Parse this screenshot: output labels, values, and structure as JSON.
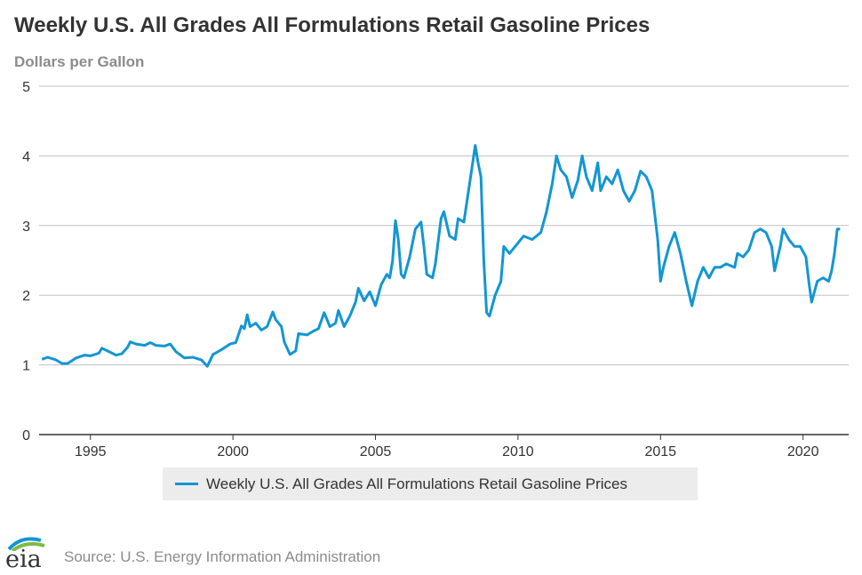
{
  "title": "Weekly U.S. All Grades All Formulations Retail Gasoline Prices",
  "units_label": "Dollars per Gallon",
  "source_text": "Source: U.S. Energy Information Administration",
  "logo_text": "eia",
  "colors": {
    "series": "#1296d3",
    "grid": "#c0c0c0",
    "axis": "#333333",
    "legend_bg": "#ececec"
  },
  "chart_data": {
    "type": "line",
    "title": "Weekly U.S. All Grades All Formulations Retail Gasoline Prices",
    "ylabel": "Dollars per Gallon",
    "xlabel": "",
    "xlim": [
      1993.2,
      2021.6
    ],
    "ylim": [
      0,
      5
    ],
    "x_ticks": [
      1995,
      2000,
      2005,
      2010,
      2015,
      2020
    ],
    "y_ticks": [
      0,
      1,
      2,
      3,
      4,
      5
    ],
    "grid": true,
    "legend": "bottom-center",
    "series": [
      {
        "name": "Weekly U.S. All Grades All Formulations Retail Gasoline Prices",
        "points": [
          [
            1993.3,
            1.08
          ],
          [
            1993.5,
            1.11
          ],
          [
            1993.8,
            1.07
          ],
          [
            1994.0,
            1.02
          ],
          [
            1994.2,
            1.02
          ],
          [
            1994.5,
            1.1
          ],
          [
            1994.8,
            1.14
          ],
          [
            1995.0,
            1.13
          ],
          [
            1995.3,
            1.17
          ],
          [
            1995.4,
            1.24
          ],
          [
            1995.6,
            1.2
          ],
          [
            1995.9,
            1.14
          ],
          [
            1996.1,
            1.16
          ],
          [
            1996.3,
            1.25
          ],
          [
            1996.4,
            1.33
          ],
          [
            1996.6,
            1.3
          ],
          [
            1996.9,
            1.28
          ],
          [
            1997.1,
            1.32
          ],
          [
            1997.3,
            1.28
          ],
          [
            1997.6,
            1.27
          ],
          [
            1997.8,
            1.3
          ],
          [
            1998.0,
            1.19
          ],
          [
            1998.3,
            1.1
          ],
          [
            1998.6,
            1.11
          ],
          [
            1998.9,
            1.07
          ],
          [
            1999.1,
            0.98
          ],
          [
            1999.3,
            1.15
          ],
          [
            1999.6,
            1.22
          ],
          [
            1999.9,
            1.3
          ],
          [
            2000.1,
            1.32
          ],
          [
            2000.3,
            1.56
          ],
          [
            2000.4,
            1.52
          ],
          [
            2000.5,
            1.72
          ],
          [
            2000.6,
            1.55
          ],
          [
            2000.8,
            1.6
          ],
          [
            2001.0,
            1.5
          ],
          [
            2001.2,
            1.55
          ],
          [
            2001.4,
            1.76
          ],
          [
            2001.5,
            1.65
          ],
          [
            2001.7,
            1.55
          ],
          [
            2001.8,
            1.33
          ],
          [
            2002.0,
            1.15
          ],
          [
            2002.2,
            1.2
          ],
          [
            2002.3,
            1.45
          ],
          [
            2002.6,
            1.43
          ],
          [
            2002.8,
            1.48
          ],
          [
            2003.0,
            1.52
          ],
          [
            2003.2,
            1.75
          ],
          [
            2003.4,
            1.55
          ],
          [
            2003.6,
            1.6
          ],
          [
            2003.7,
            1.78
          ],
          [
            2003.9,
            1.55
          ],
          [
            2004.1,
            1.7
          ],
          [
            2004.3,
            1.9
          ],
          [
            2004.4,
            2.1
          ],
          [
            2004.6,
            1.92
          ],
          [
            2004.8,
            2.05
          ],
          [
            2005.0,
            1.85
          ],
          [
            2005.2,
            2.15
          ],
          [
            2005.4,
            2.3
          ],
          [
            2005.5,
            2.25
          ],
          [
            2005.6,
            2.5
          ],
          [
            2005.7,
            3.07
          ],
          [
            2005.8,
            2.8
          ],
          [
            2005.9,
            2.3
          ],
          [
            2006.0,
            2.25
          ],
          [
            2006.2,
            2.55
          ],
          [
            2006.4,
            2.95
          ],
          [
            2006.6,
            3.05
          ],
          [
            2006.7,
            2.7
          ],
          [
            2006.8,
            2.3
          ],
          [
            2007.0,
            2.25
          ],
          [
            2007.1,
            2.45
          ],
          [
            2007.3,
            3.1
          ],
          [
            2007.4,
            3.2
          ],
          [
            2007.6,
            2.85
          ],
          [
            2007.8,
            2.8
          ],
          [
            2007.9,
            3.1
          ],
          [
            2008.1,
            3.05
          ],
          [
            2008.3,
            3.6
          ],
          [
            2008.5,
            4.15
          ],
          [
            2008.6,
            3.9
          ],
          [
            2008.7,
            3.7
          ],
          [
            2008.8,
            2.5
          ],
          [
            2008.9,
            1.75
          ],
          [
            2009.0,
            1.7
          ],
          [
            2009.2,
            2.0
          ],
          [
            2009.4,
            2.2
          ],
          [
            2009.5,
            2.7
          ],
          [
            2009.7,
            2.6
          ],
          [
            2010.0,
            2.75
          ],
          [
            2010.2,
            2.85
          ],
          [
            2010.5,
            2.8
          ],
          [
            2010.8,
            2.9
          ],
          [
            2011.0,
            3.2
          ],
          [
            2011.2,
            3.6
          ],
          [
            2011.35,
            4.0
          ],
          [
            2011.5,
            3.8
          ],
          [
            2011.7,
            3.7
          ],
          [
            2011.9,
            3.4
          ],
          [
            2012.1,
            3.65
          ],
          [
            2012.25,
            4.0
          ],
          [
            2012.4,
            3.7
          ],
          [
            2012.6,
            3.5
          ],
          [
            2012.8,
            3.9
          ],
          [
            2012.9,
            3.5
          ],
          [
            2013.1,
            3.7
          ],
          [
            2013.3,
            3.6
          ],
          [
            2013.5,
            3.8
          ],
          [
            2013.7,
            3.5
          ],
          [
            2013.9,
            3.35
          ],
          [
            2014.1,
            3.5
          ],
          [
            2014.3,
            3.78
          ],
          [
            2014.5,
            3.7
          ],
          [
            2014.7,
            3.5
          ],
          [
            2014.9,
            2.8
          ],
          [
            2015.0,
            2.2
          ],
          [
            2015.1,
            2.4
          ],
          [
            2015.3,
            2.7
          ],
          [
            2015.5,
            2.9
          ],
          [
            2015.7,
            2.6
          ],
          [
            2015.9,
            2.2
          ],
          [
            2016.1,
            1.85
          ],
          [
            2016.3,
            2.2
          ],
          [
            2016.5,
            2.4
          ],
          [
            2016.7,
            2.25
          ],
          [
            2016.9,
            2.4
          ],
          [
            2017.1,
            2.4
          ],
          [
            2017.3,
            2.45
          ],
          [
            2017.6,
            2.4
          ],
          [
            2017.7,
            2.6
          ],
          [
            2017.9,
            2.55
          ],
          [
            2018.1,
            2.65
          ],
          [
            2018.3,
            2.9
          ],
          [
            2018.5,
            2.95
          ],
          [
            2018.7,
            2.9
          ],
          [
            2018.9,
            2.7
          ],
          [
            2019.0,
            2.35
          ],
          [
            2019.2,
            2.7
          ],
          [
            2019.3,
            2.95
          ],
          [
            2019.5,
            2.8
          ],
          [
            2019.7,
            2.7
          ],
          [
            2019.9,
            2.7
          ],
          [
            2020.1,
            2.55
          ],
          [
            2020.2,
            2.2
          ],
          [
            2020.3,
            1.9
          ],
          [
            2020.5,
            2.2
          ],
          [
            2020.7,
            2.25
          ],
          [
            2020.9,
            2.2
          ],
          [
            2021.0,
            2.35
          ],
          [
            2021.1,
            2.6
          ],
          [
            2021.2,
            2.95
          ],
          [
            2021.3,
            2.95
          ]
        ]
      }
    ]
  }
}
